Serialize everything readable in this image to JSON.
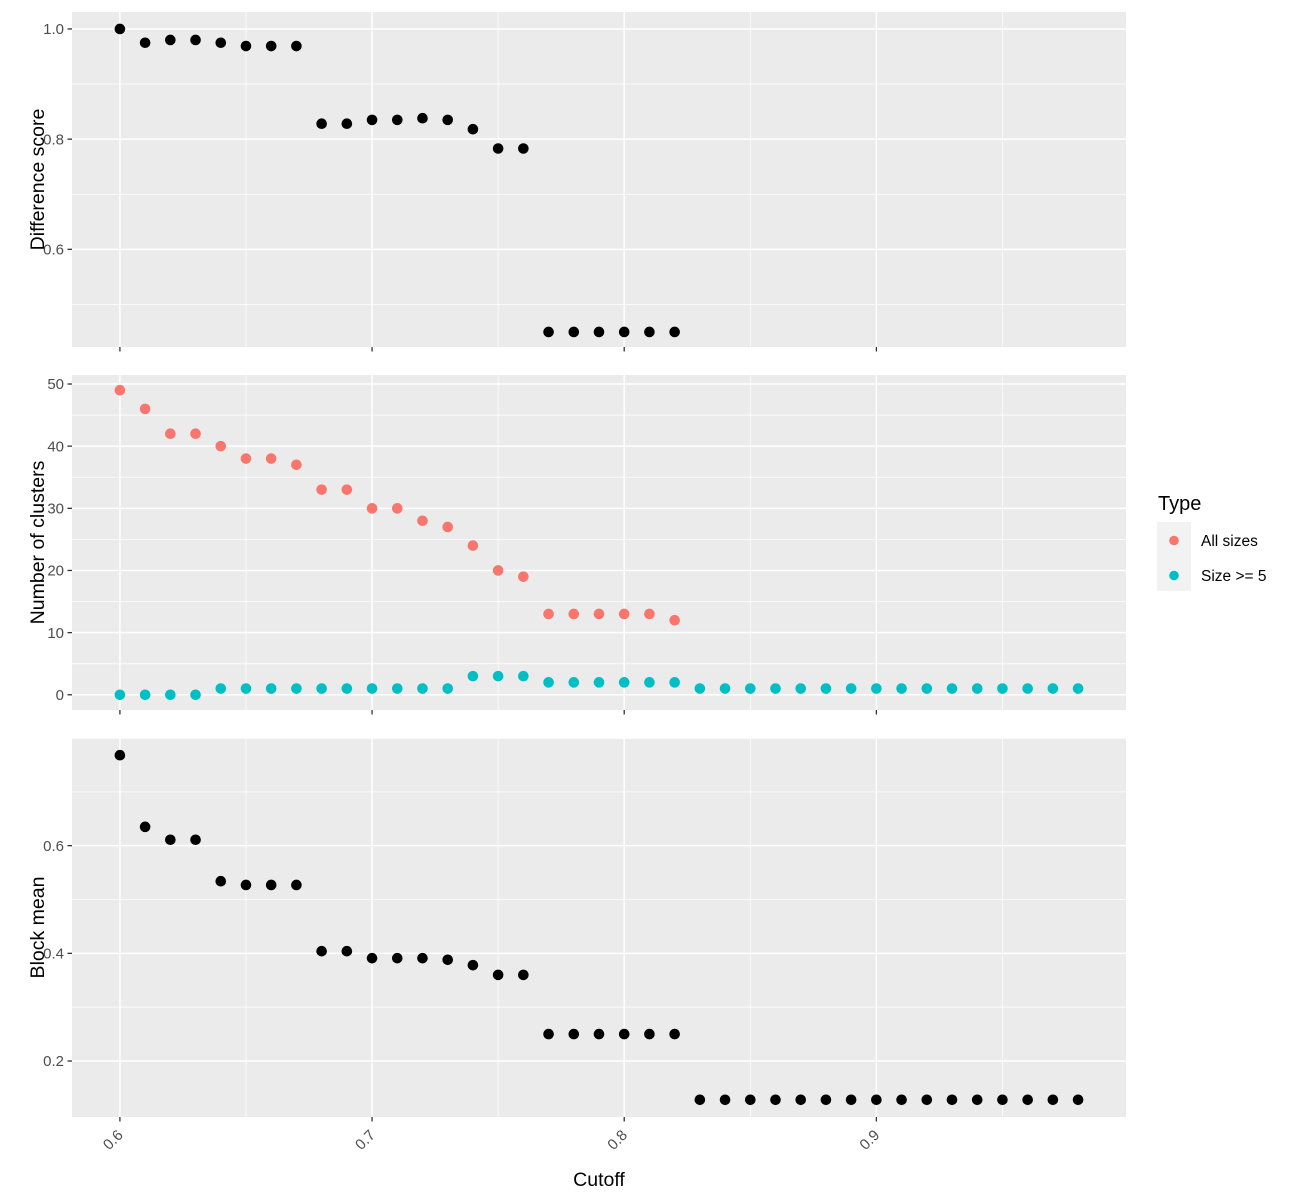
{
  "x_axis": {
    "title": "Cutoff",
    "tick_labels": [
      "0.6",
      "0.7",
      "0.8",
      "0.9"
    ],
    "tick_values": [
      0.6,
      0.7,
      0.8,
      0.9
    ],
    "minor_values": [
      0.65,
      0.75,
      0.85,
      0.95
    ],
    "xlim": [
      0.581,
      0.999
    ]
  },
  "legend": {
    "title": "Type",
    "items": [
      {
        "label": "All sizes",
        "color": "#F8766D"
      },
      {
        "label": "Size >= 5",
        "color": "#00BFC4"
      }
    ]
  },
  "style": {
    "panel_bg": "#EBEBEB",
    "grid_color": "#FFFFFF",
    "axis_text_color": "#4D4D4D",
    "tick_mark_color": "#333333",
    "legend_key_bg": "#F2F2F2",
    "black_point": "#000000"
  },
  "chart_data": [
    {
      "type": "scatter",
      "panel": "difference-score",
      "ylabel": "Difference score",
      "xlabel": "Cutoff",
      "ylim": [
        0.4227,
        1.0308
      ],
      "y_ticks": {
        "labels": [
          "0.6",
          "0.8",
          "1.0"
        ],
        "values": [
          0.6,
          0.8,
          1.0
        ]
      },
      "y_minor": [
        0.5,
        0.7,
        0.9
      ],
      "y_grid_extra": [],
      "series": [
        {
          "name": "Difference score",
          "color": "#000000",
          "x": [
            0.6,
            0.61,
            0.62,
            0.63,
            0.64,
            0.65,
            0.66,
            0.67,
            0.68,
            0.69,
            0.7,
            0.71,
            0.72,
            0.73,
            0.74,
            0.75,
            0.76,
            0.77,
            0.78,
            0.79,
            0.8,
            0.81,
            0.82
          ],
          "y": [
            1.0,
            0.975,
            0.98,
            0.98,
            0.975,
            0.969,
            0.969,
            0.969,
            0.828,
            0.828,
            0.835,
            0.835,
            0.838,
            0.835,
            0.818,
            0.783,
            0.783,
            0.45,
            0.45,
            0.45,
            0.45,
            0.45,
            0.45
          ]
        }
      ]
    },
    {
      "type": "scatter",
      "panel": "number-of-clusters",
      "ylabel": "Number of clusters",
      "xlabel": "Cutoff",
      "ylim": [
        -2.45,
        51.45
      ],
      "y_ticks": {
        "labels": [
          "0",
          "10",
          "20",
          "30",
          "40",
          "50"
        ],
        "values": [
          0,
          10,
          20,
          30,
          40,
          50
        ]
      },
      "y_minor": [
        5,
        15,
        25,
        35,
        45
      ],
      "y_grid_extra": [],
      "series": [
        {
          "name": "All sizes",
          "color": "#F8766D",
          "x": [
            0.6,
            0.61,
            0.62,
            0.63,
            0.64,
            0.65,
            0.66,
            0.67,
            0.68,
            0.69,
            0.7,
            0.71,
            0.72,
            0.73,
            0.74,
            0.75,
            0.76,
            0.77,
            0.78,
            0.79,
            0.8,
            0.81,
            0.82
          ],
          "y": [
            49,
            46,
            42,
            42,
            40,
            38,
            38,
            37,
            33,
            33,
            30,
            30,
            28,
            27,
            24,
            20,
            19,
            13,
            13,
            13,
            13,
            13,
            12
          ]
        },
        {
          "name": "Size >= 5",
          "color": "#00BFC4",
          "x": [
            0.6,
            0.61,
            0.62,
            0.63,
            0.64,
            0.65,
            0.66,
            0.67,
            0.68,
            0.69,
            0.7,
            0.71,
            0.72,
            0.73,
            0.74,
            0.75,
            0.76,
            0.77,
            0.78,
            0.79,
            0.8,
            0.81,
            0.82,
            0.83,
            0.84,
            0.85,
            0.86,
            0.87,
            0.88,
            0.89,
            0.9,
            0.91,
            0.92,
            0.93,
            0.94,
            0.95,
            0.96,
            0.97,
            0.98
          ],
          "y": [
            0,
            0,
            0,
            0,
            1,
            1,
            1,
            1,
            1,
            1,
            1,
            1,
            1,
            1,
            3,
            3,
            3,
            2,
            2,
            2,
            2,
            2,
            2,
            1,
            1,
            1,
            1,
            1,
            1,
            1,
            1,
            1,
            1,
            1,
            1,
            1,
            1,
            1,
            1
          ]
        }
      ]
    },
    {
      "type": "scatter",
      "panel": "block-mean",
      "ylabel": "Block mean",
      "xlabel": "Cutoff",
      "ylim": [
        0.096,
        0.8
      ],
      "y_ticks": {
        "labels": [
          "0.2",
          "0.4",
          "0.6"
        ],
        "values": [
          0.2,
          0.4,
          0.6
        ]
      },
      "y_minor": [
        0.3,
        0.5,
        0.7
      ],
      "y_grid_extra": [
        0.8
      ],
      "series": [
        {
          "name": "Block mean",
          "color": "#000000",
          "x": [
            0.6,
            0.61,
            0.62,
            0.63,
            0.64,
            0.65,
            0.66,
            0.67,
            0.68,
            0.69,
            0.7,
            0.71,
            0.72,
            0.73,
            0.74,
            0.75,
            0.76,
            0.77,
            0.78,
            0.79,
            0.8,
            0.81,
            0.82,
            0.83,
            0.84,
            0.85,
            0.86,
            0.87,
            0.88,
            0.89,
            0.9,
            0.91,
            0.92,
            0.93,
            0.94,
            0.95,
            0.96,
            0.97,
            0.98
          ],
          "y": [
            0.768,
            0.635,
            0.611,
            0.611,
            0.534,
            0.527,
            0.527,
            0.527,
            0.404,
            0.404,
            0.391,
            0.391,
            0.391,
            0.388,
            0.378,
            0.36,
            0.36,
            0.25,
            0.25,
            0.25,
            0.25,
            0.25,
            0.25,
            0.128,
            0.128,
            0.128,
            0.128,
            0.128,
            0.128,
            0.128,
            0.128,
            0.128,
            0.128,
            0.128,
            0.128,
            0.128,
            0.128,
            0.128,
            0.128
          ]
        }
      ]
    }
  ]
}
